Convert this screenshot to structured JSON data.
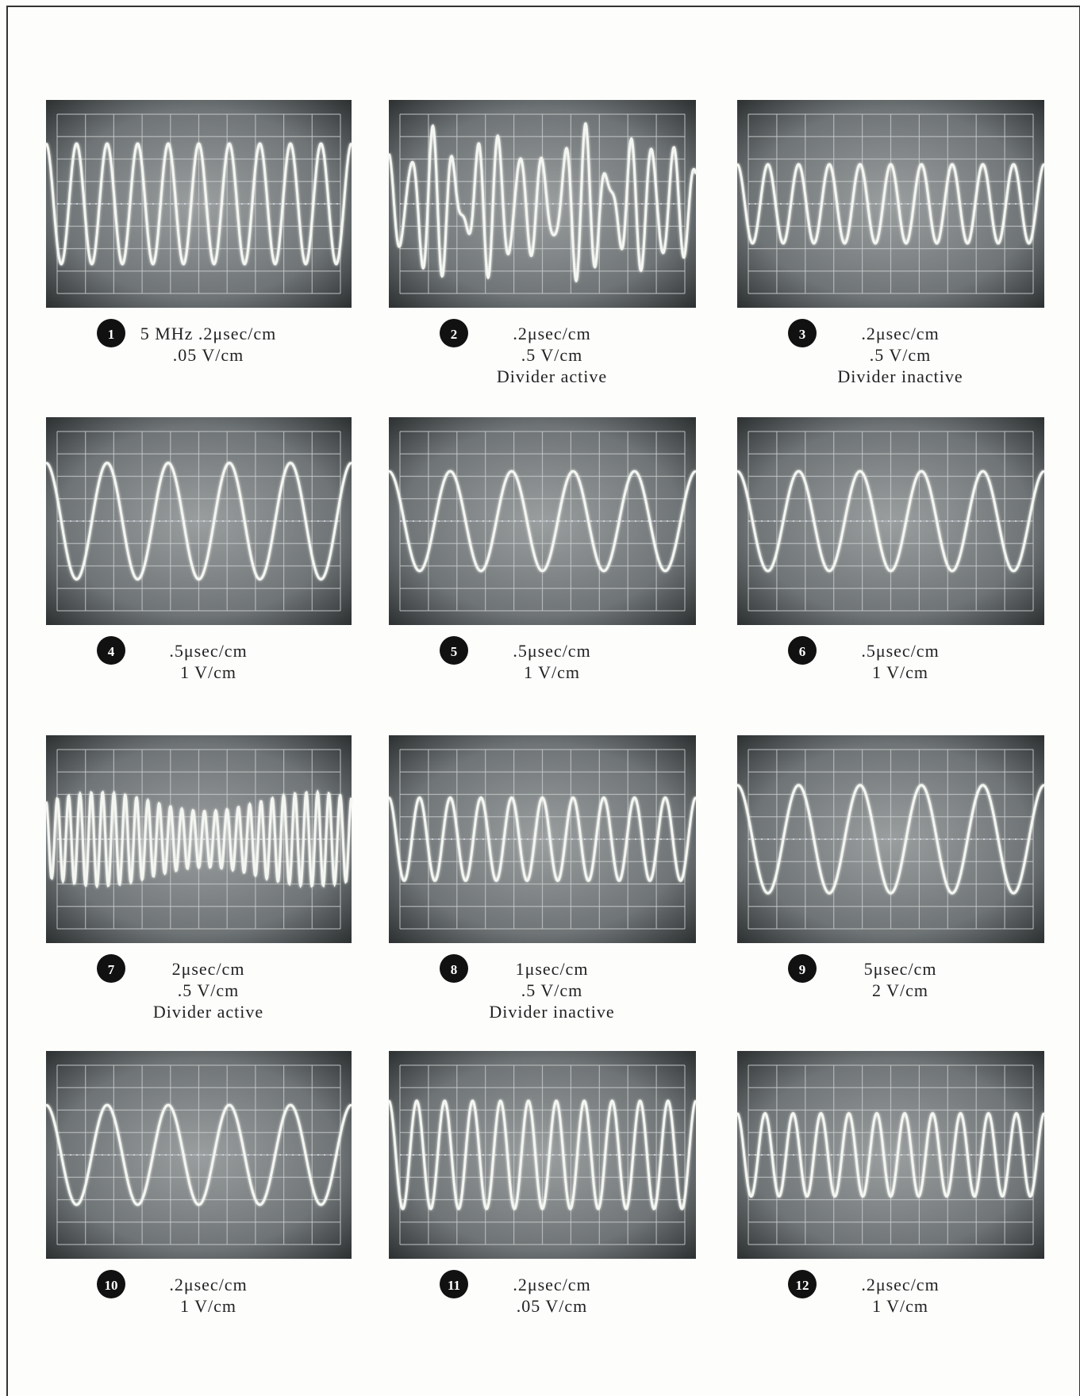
{
  "panels": [
    {
      "number": "1",
      "lines": [
        "5 MHz .2μsec/cm",
        ".05 V/cm"
      ]
    },
    {
      "number": "2",
      "lines": [
        ".2μsec/cm",
        ".5 V/cm",
        "Divider active"
      ]
    },
    {
      "number": "3",
      "lines": [
        ".2μsec/cm",
        ".5 V/cm",
        "Divider inactive"
      ]
    },
    {
      "number": "4",
      "lines": [
        ".5μsec/cm",
        "1 V/cm"
      ]
    },
    {
      "number": "5",
      "lines": [
        ".5μsec/cm",
        "1 V/cm"
      ]
    },
    {
      "number": "6",
      "lines": [
        ".5μsec/cm",
        "1 V/cm"
      ]
    },
    {
      "number": "7",
      "lines": [
        "2μsec/cm",
        ".5 V/cm",
        "Divider active"
      ]
    },
    {
      "number": "8",
      "lines": [
        "1μsec/cm",
        ".5 V/cm",
        "Divider inactive"
      ]
    },
    {
      "number": "9",
      "lines": [
        "5μsec/cm",
        "2 V/cm"
      ]
    },
    {
      "number": "10",
      "lines": [
        ".2μsec/cm",
        "1 V/cm"
      ]
    },
    {
      "number": "11",
      "lines": [
        ".2μsec/cm",
        ".05 V/cm"
      ]
    },
    {
      "number": "12",
      "lines": [
        ".2μsec/cm",
        "1 V/cm"
      ]
    }
  ]
}
